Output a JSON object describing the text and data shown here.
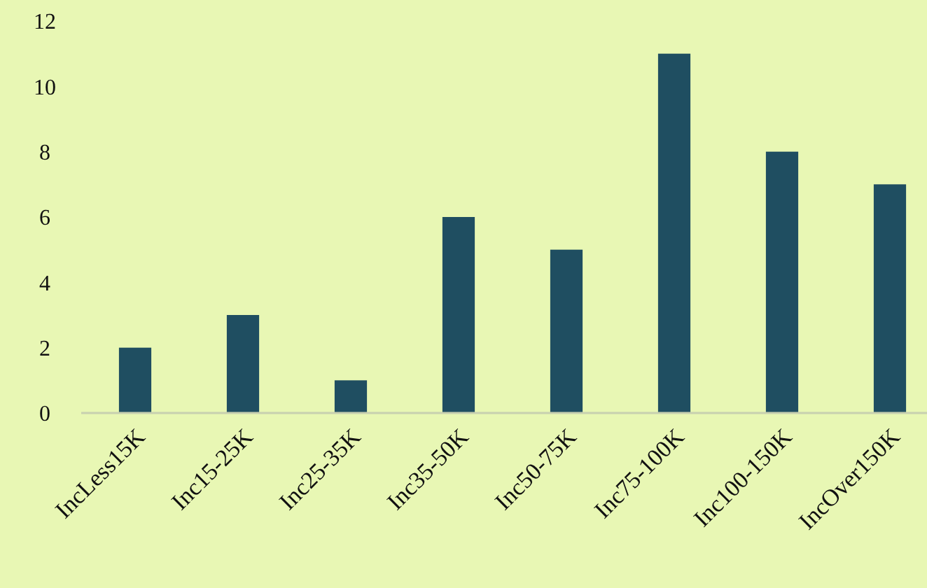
{
  "chart_data": {
    "type": "bar",
    "categories": [
      "IncLess15K",
      "Inc15-25K",
      "Inc25-35K",
      "Inc35-50K",
      "Inc50-75K",
      "Inc75-100K",
      "Inc100-150K",
      "IncOver150K"
    ],
    "values": [
      2,
      3,
      1,
      6,
      5,
      11,
      8,
      7
    ],
    "color": "#1f4e61",
    "ylim": [
      0,
      12
    ],
    "yticks": [
      0,
      2,
      4,
      6,
      8,
      10,
      12
    ],
    "grid": false
  }
}
